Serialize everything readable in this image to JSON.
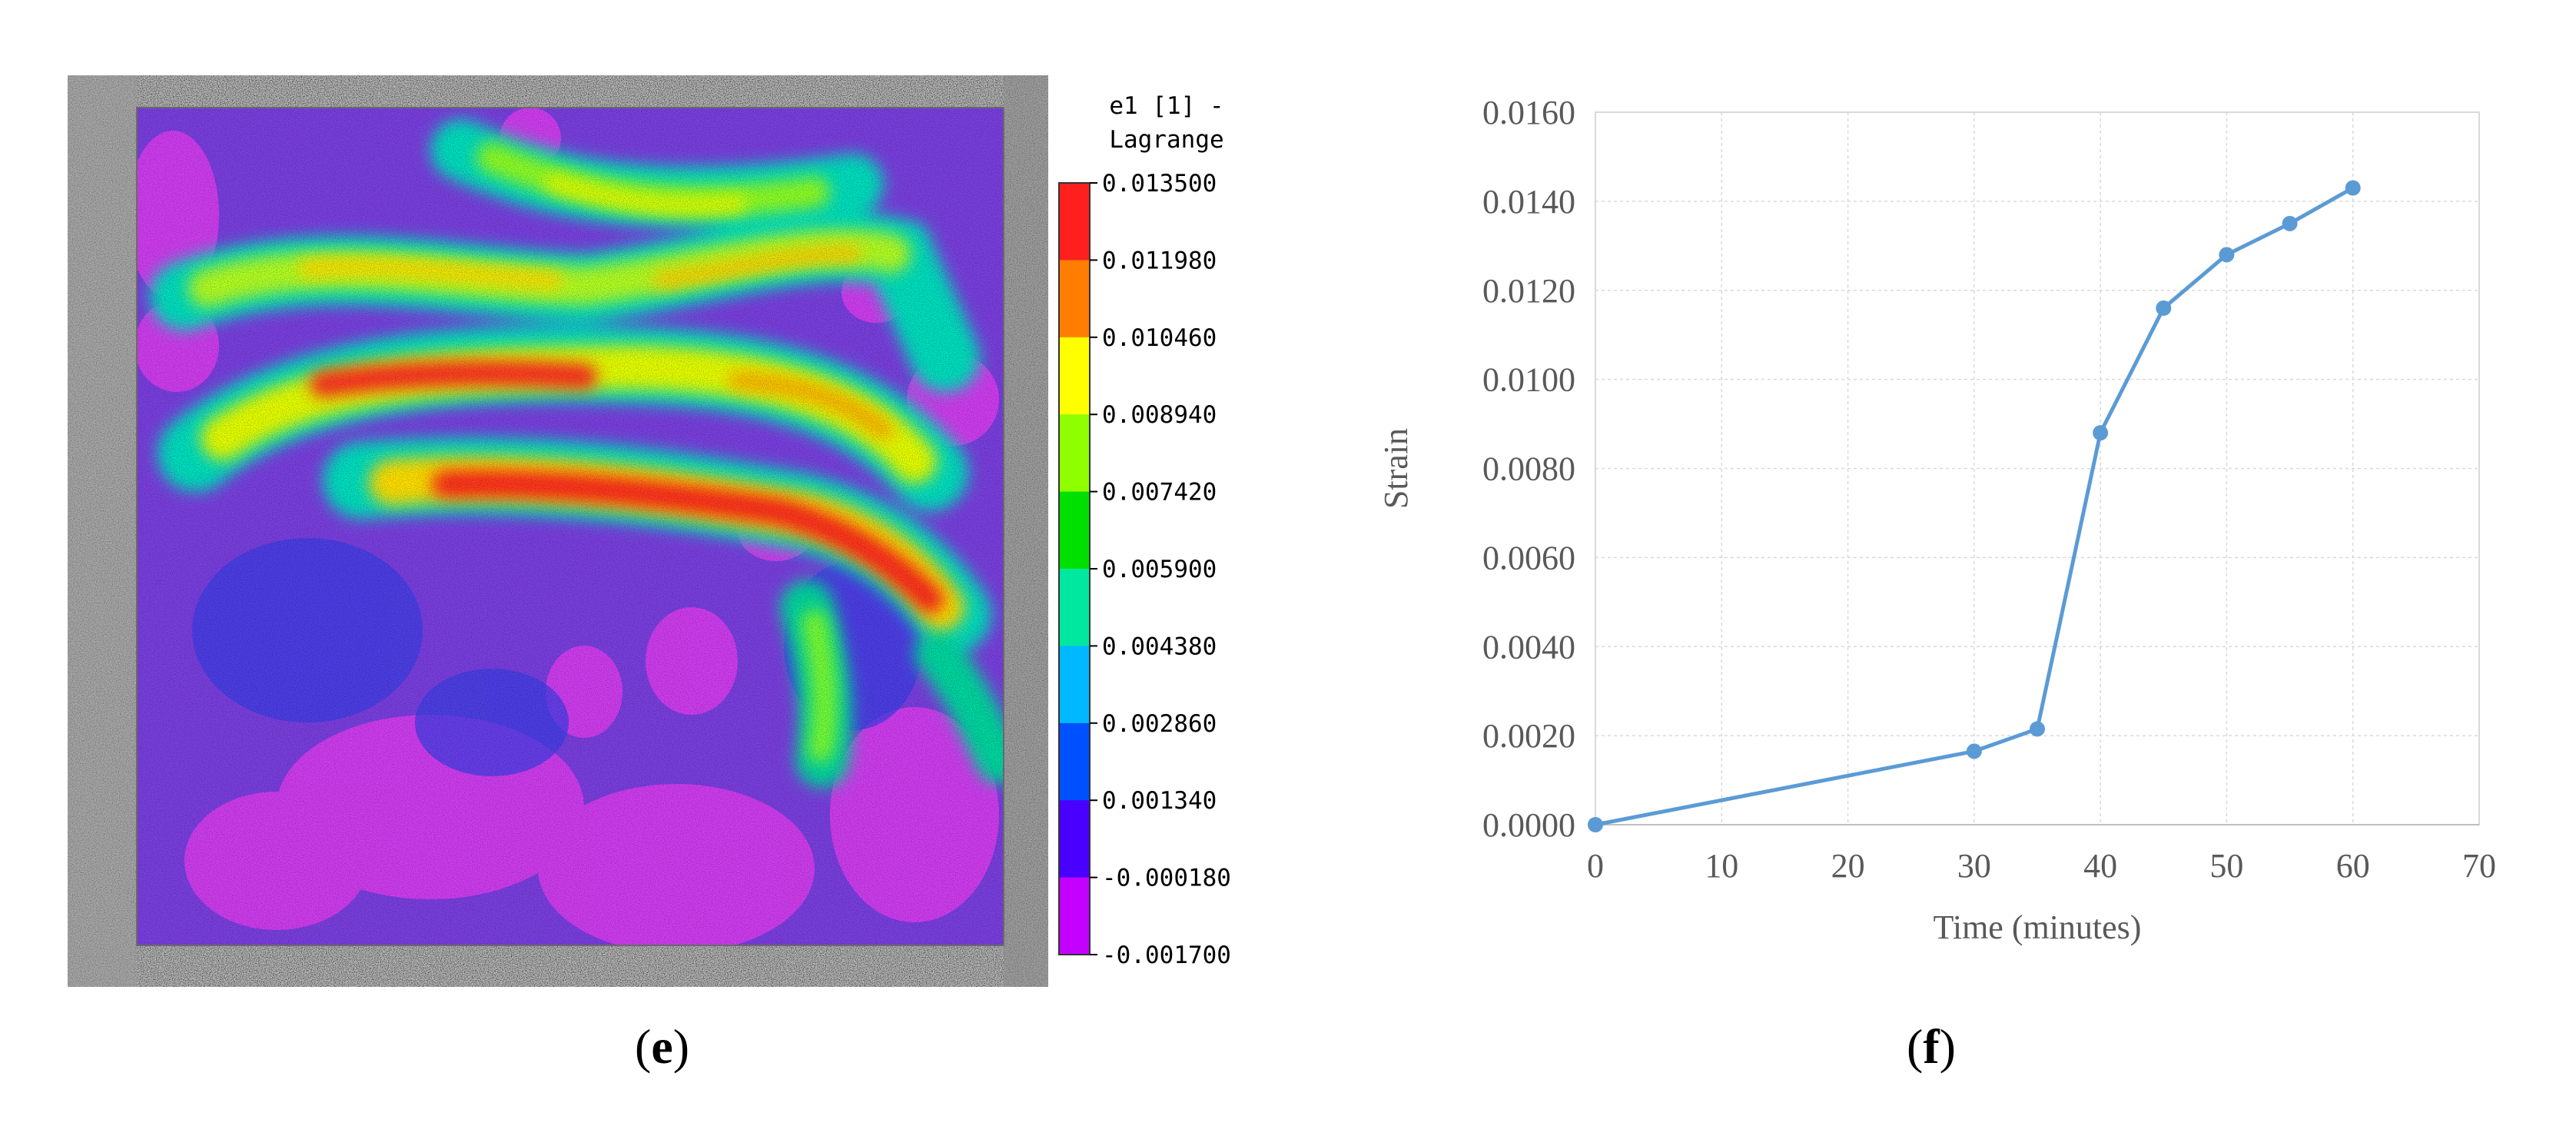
{
  "panels": {
    "e": {
      "label": "e"
    },
    "f": {
      "label": "f"
    }
  },
  "colorbar": {
    "title_line1": "e1 [1] -",
    "title_line2": "Lagrange",
    "ticks": [
      "0.013500",
      "0.011980",
      "0.010460",
      "0.008940",
      "0.007420",
      "0.005900",
      "0.004380",
      "0.002860",
      "0.001340",
      "-0.000180",
      "-0.001700"
    ],
    "colors": [
      "#ff1f1f",
      "#ff7d00",
      "#ffff00",
      "#8fff00",
      "#00e000",
      "#00e8a0",
      "#00b8ff",
      "#0050ff",
      "#4a00ff",
      "#c400ff"
    ]
  },
  "chart_data": {
    "type": "line",
    "xlabel": "Time (minutes)",
    "ylabel": "Strain",
    "xlim": [
      0,
      70
    ],
    "ylim": [
      0,
      0.016
    ],
    "x_ticks": [
      "0",
      "10",
      "20",
      "30",
      "40",
      "50",
      "60",
      "70"
    ],
    "y_ticks": [
      "0.0000",
      "0.0020",
      "0.0040",
      "0.0060",
      "0.0080",
      "0.0100",
      "0.0120",
      "0.0140",
      "0.0160"
    ],
    "grid": true,
    "series": [
      {
        "color": "#5b9bd5",
        "x": [
          0,
          30,
          35,
          40,
          45,
          50,
          55,
          60
        ],
        "y": [
          0.0,
          0.00165,
          0.00215,
          0.0088,
          0.0116,
          0.0128,
          0.0135,
          0.0143
        ]
      }
    ]
  }
}
